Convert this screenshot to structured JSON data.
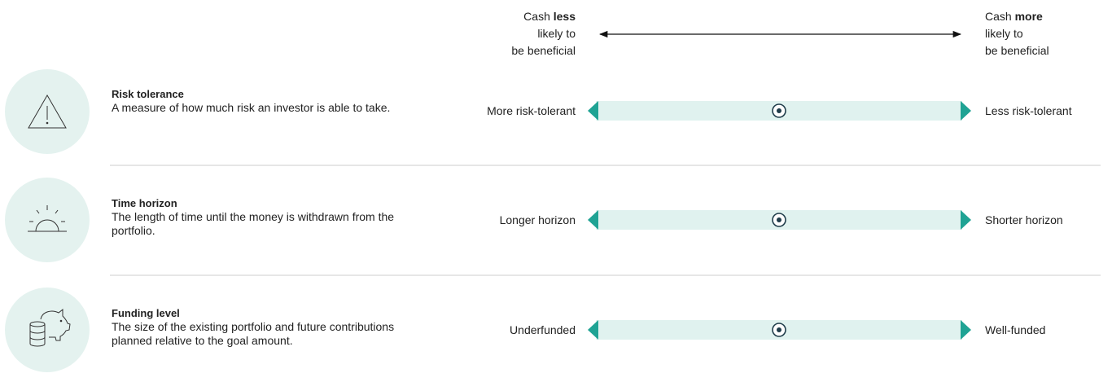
{
  "header": {
    "left": {
      "prefix": "Cash",
      "emphasis": "less",
      "lines": [
        "likely to",
        "be beneficial"
      ]
    },
    "right": {
      "prefix": "Cash",
      "emphasis": "more",
      "lines": [
        "likely to",
        "be beneficial"
      ]
    }
  },
  "rows": [
    {
      "title": "Risk tolerance",
      "description": "A measure of how much risk an investor is able to take.",
      "left_label": "More risk-tolerant",
      "right_label": "Less risk-tolerant"
    },
    {
      "title": "Time horizon",
      "description": "The length of time until the money is withdrawn from the portfolio.",
      "left_label": "Longer horizon",
      "right_label": "Shorter horizon"
    },
    {
      "title": "Funding level",
      "description": "The size of the existing portfolio and future contributions planned relative to the goal amount.",
      "left_label": "Underfunded",
      "right_label": "Well-funded"
    }
  ]
}
